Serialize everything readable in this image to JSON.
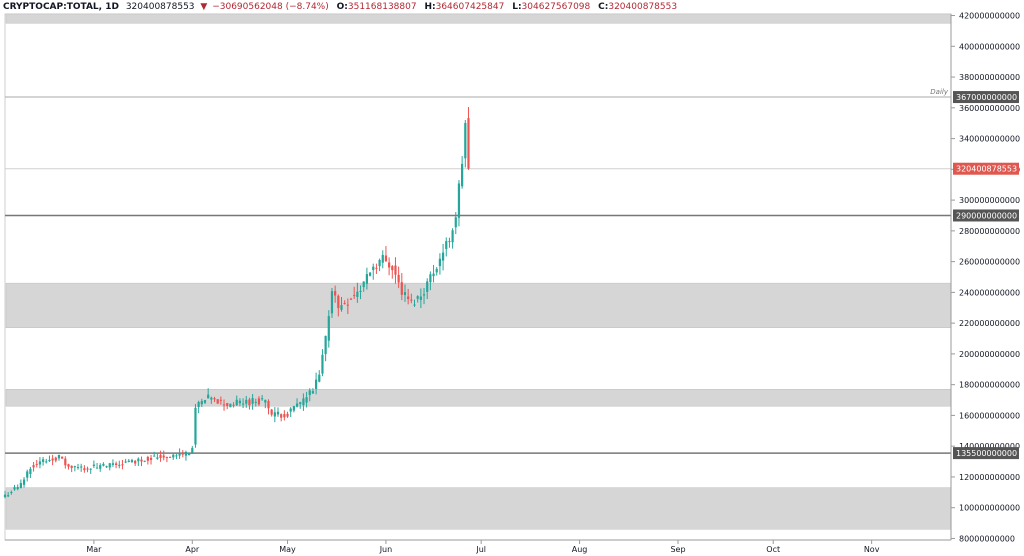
{
  "header": {
    "symbol": "CRYPTOCAP:TOTAL, 1D",
    "last": "320400878553",
    "change": "−30690562048 (−8.74%)",
    "o_label": "O:",
    "o_value": "351168138807",
    "h_label": "H:",
    "h_value": "364607425847",
    "l_label": "L:",
    "l_value": "304627567098",
    "c_label": "C:",
    "c_value": "320400878553"
  },
  "colors": {
    "up": "#26a69a",
    "down": "#ef5350",
    "zone": "#d6d6d6",
    "badge": "#555555",
    "price_badge": "#e0574f"
  },
  "chart_data": {
    "type": "candlestick",
    "symbol": "CRYPTOCAP:TOTAL",
    "interval": "1D",
    "ylim": [
      79000000000,
      421000000000
    ],
    "y_ticks": [
      "80000000000",
      "100000000000",
      "120000000000",
      "140000000000",
      "160000000000",
      "180000000000",
      "200000000000",
      "220000000000",
      "240000000000",
      "260000000000",
      "280000000000",
      "300000000000",
      "320000000000",
      "340000000000",
      "360000000000",
      "380000000000",
      "400000000000",
      "420000000000"
    ],
    "x_ticks": [
      {
        "label": "Mar",
        "date": "2019-03-01"
      },
      {
        "label": "Apr",
        "date": "2019-04-01"
      },
      {
        "label": "May",
        "date": "2019-05-01"
      },
      {
        "label": "Jun",
        "date": "2019-06-01"
      },
      {
        "label": "Jul",
        "date": "2019-07-01"
      },
      {
        "label": "Aug",
        "date": "2019-08-01"
      },
      {
        "label": "Sep",
        "date": "2019-09-01"
      },
      {
        "label": "Oct",
        "date": "2019-10-01"
      },
      {
        "label": "Nov",
        "date": "2019-11-01"
      }
    ],
    "x_start": "2019-02-01",
    "x_end": "2019-11-26",
    "zones": [
      {
        "from": 415000000000,
        "to": 421000000000
      },
      {
        "from": 217000000000,
        "to": 246000000000
      },
      {
        "from": 166000000000,
        "to": 177000000000
      },
      {
        "from": 86000000000,
        "to": 113000000000
      }
    ],
    "levels": [
      {
        "value": 367000000000,
        "label": "367000000000",
        "note": "Daily",
        "weight": "thin"
      },
      {
        "value": 290000000000,
        "label": "290000000000",
        "weight": "thick"
      },
      {
        "value": 135500000000,
        "label": "135500000000",
        "weight": "thick"
      }
    ],
    "last_price": {
      "value": 320400878553,
      "label": "320400878553"
    },
    "closes": [
      {
        "date": "2019-02-01",
        "c": 108000000000
      },
      {
        "date": "2019-02-06",
        "c": 115000000000
      },
      {
        "date": "2019-02-09",
        "c": 127000000000
      },
      {
        "date": "2019-02-14",
        "c": 131000000000
      },
      {
        "date": "2019-02-18",
        "c": 133000000000
      },
      {
        "date": "2019-02-21",
        "c": 126000000000
      },
      {
        "date": "2019-02-26",
        "c": 126000000000
      },
      {
        "date": "2019-03-05",
        "c": 127000000000
      },
      {
        "date": "2019-03-13",
        "c": 130000000000
      },
      {
        "date": "2019-03-20",
        "c": 133000000000
      },
      {
        "date": "2019-03-27",
        "c": 134000000000
      },
      {
        "date": "2019-03-31",
        "c": 136000000000
      },
      {
        "date": "2019-04-01",
        "c": 140000000000
      },
      {
        "date": "2019-04-02",
        "c": 165000000000
      },
      {
        "date": "2019-04-06",
        "c": 171000000000
      },
      {
        "date": "2019-04-12",
        "c": 167000000000
      },
      {
        "date": "2019-04-18",
        "c": 169000000000
      },
      {
        "date": "2019-04-24",
        "c": 170000000000
      },
      {
        "date": "2019-04-26",
        "c": 160000000000
      },
      {
        "date": "2019-05-01",
        "c": 161000000000
      },
      {
        "date": "2019-05-06",
        "c": 170000000000
      },
      {
        "date": "2019-05-09",
        "c": 176000000000
      },
      {
        "date": "2019-05-11",
        "c": 186000000000
      },
      {
        "date": "2019-05-13",
        "c": 210000000000
      },
      {
        "date": "2019-05-15",
        "c": 243000000000
      },
      {
        "date": "2019-05-17",
        "c": 230000000000
      },
      {
        "date": "2019-05-20",
        "c": 235000000000
      },
      {
        "date": "2019-05-24",
        "c": 242000000000
      },
      {
        "date": "2019-05-27",
        "c": 255000000000
      },
      {
        "date": "2019-05-31",
        "c": 262000000000
      },
      {
        "date": "2019-06-03",
        "c": 257000000000
      },
      {
        "date": "2019-06-06",
        "c": 240000000000
      },
      {
        "date": "2019-06-09",
        "c": 233000000000
      },
      {
        "date": "2019-06-12",
        "c": 238000000000
      },
      {
        "date": "2019-06-15",
        "c": 250000000000
      },
      {
        "date": "2019-06-18",
        "c": 262000000000
      },
      {
        "date": "2019-06-21",
        "c": 275000000000
      },
      {
        "date": "2019-06-23",
        "c": 290000000000
      },
      {
        "date": "2019-06-25",
        "c": 325000000000
      },
      {
        "date": "2019-06-26",
        "c": 351000000000
      },
      {
        "date": "2019-06-27",
        "c": 320400878553
      }
    ]
  }
}
